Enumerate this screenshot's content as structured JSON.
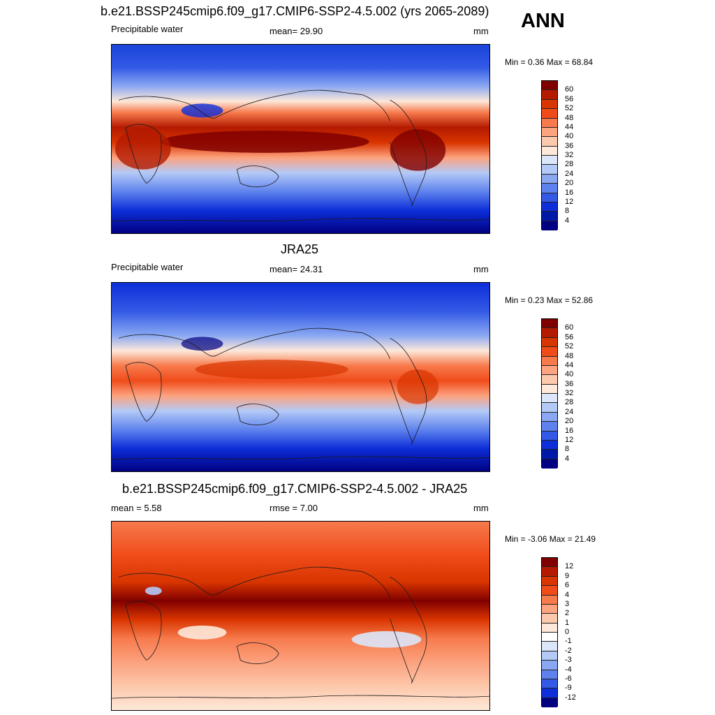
{
  "season": "ANN",
  "panels": [
    {
      "title": "b.e21.BSSP245cmip6.f09_g17.CMIP6-SSP2-4.5.002 (yrs 2065-2089)",
      "left_label": "Precipitable water",
      "center_label": "mean=  29.90",
      "units": "mm",
      "minmax": "Min =   0.36 Max =  68.84",
      "colorbar_labels": [
        "60",
        "56",
        "52",
        "48",
        "44",
        "40",
        "36",
        "32",
        "28",
        "24",
        "20",
        "16",
        "12",
        "8",
        "4"
      ]
    },
    {
      "title": "JRA25",
      "left_label": "Precipitable water",
      "center_label": "mean=  24.31",
      "units": "mm",
      "minmax": "Min =   0.23 Max =  52.86",
      "colorbar_labels": [
        "60",
        "56",
        "52",
        "48",
        "44",
        "40",
        "36",
        "32",
        "28",
        "24",
        "20",
        "16",
        "12",
        "8",
        "4"
      ]
    },
    {
      "title": "b.e21.BSSP245cmip6.f09_g17.CMIP6-SSP2-4.5.002 - JRA25",
      "left_label": "mean =   5.58",
      "center_label": "rmse =   7.00",
      "units": "mm",
      "minmax": "Min =  -3.06 Max =  21.49",
      "colorbar_labels": [
        "12",
        "9",
        "6",
        "4",
        "3",
        "2",
        "1",
        "0",
        "-1",
        "-2",
        "-3",
        "-4",
        "-6",
        "-9",
        "-12"
      ]
    }
  ],
  "colors": {
    "abs_scale": [
      "#800000",
      "#b31a00",
      "#d93500",
      "#f04c1a",
      "#f77a4c",
      "#fca380",
      "#fdc9ad",
      "#fde8d9",
      "#dbe6fa",
      "#b3c9f7",
      "#8aa8f2",
      "#5e82ed",
      "#3359e6",
      "#0d2ed9",
      "#0018a8",
      "#000080"
    ],
    "diff_scale": [
      "#800000",
      "#b31a00",
      "#d93500",
      "#f04c1a",
      "#f77a4c",
      "#fca380",
      "#fdc9ad",
      "#fde8d9",
      "#ffffff",
      "#dbe6fa",
      "#b3c9f7",
      "#8aa8f2",
      "#5e82ed",
      "#3359e6",
      "#0d2ed9",
      "#000080"
    ]
  }
}
